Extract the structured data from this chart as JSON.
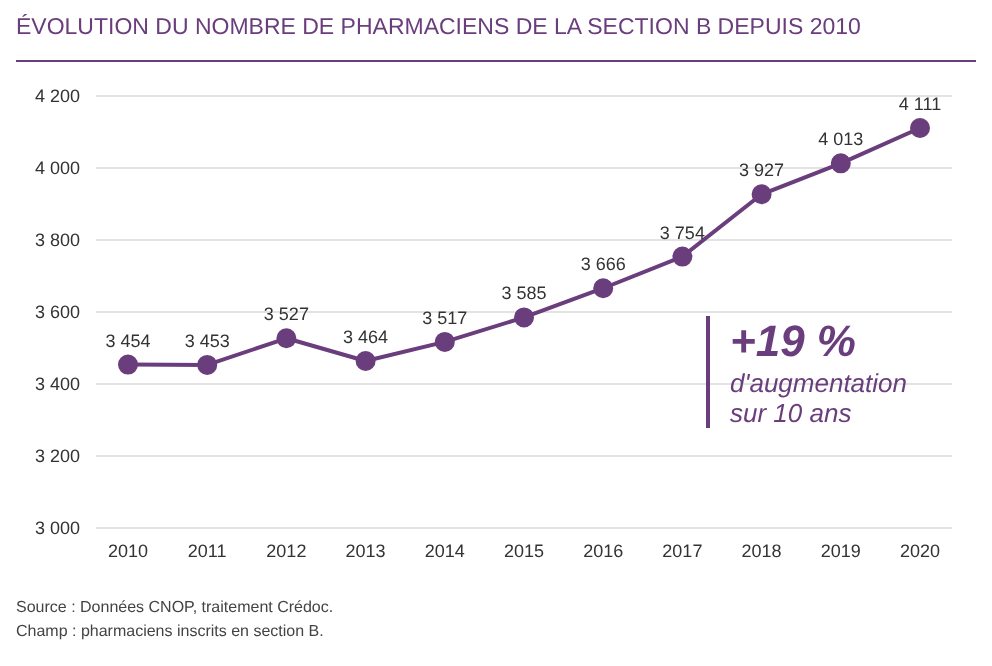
{
  "chart_data": {
    "type": "line",
    "title": "ÉVOLUTION DU NOMBRE DE PHARMACIENS DE LA SECTION B DEPUIS 2010",
    "categories": [
      "2010",
      "2011",
      "2012",
      "2013",
      "2014",
      "2015",
      "2016",
      "2017",
      "2018",
      "2019",
      "2020"
    ],
    "series": [
      {
        "color": "#6a3d7c",
        "values": [
          3454,
          3453,
          3527,
          3464,
          3517,
          3585,
          3666,
          3754,
          3927,
          4013,
          4111
        ],
        "value_labels": [
          "3 454",
          "3 453",
          "3 527",
          "3 464",
          "3 517",
          "3 585",
          "3 666",
          "3 754",
          "3 927",
          "4 013",
          "4 111"
        ]
      }
    ],
    "ylim": [
      3000,
      4200
    ],
    "yticks": [
      {
        "value": 3000,
        "label": "3 000"
      },
      {
        "value": 3200,
        "label": "3 200"
      },
      {
        "value": 3400,
        "label": "3 400"
      },
      {
        "value": 3600,
        "label": "3 600"
      },
      {
        "value": 3800,
        "label": "3 800"
      },
      {
        "value": 4000,
        "label": "4 000"
      },
      {
        "value": 4200,
        "label": "4 200"
      }
    ],
    "grid": "y",
    "marker": "circle",
    "line_style": "solid",
    "annotations": [
      "+19 %",
      "d'augmentation\nsur 10 ans",
      "Source : Données CNOP, traitement Crédoc.",
      "Champ : pharmaciens inscrits en section B."
    ]
  }
}
